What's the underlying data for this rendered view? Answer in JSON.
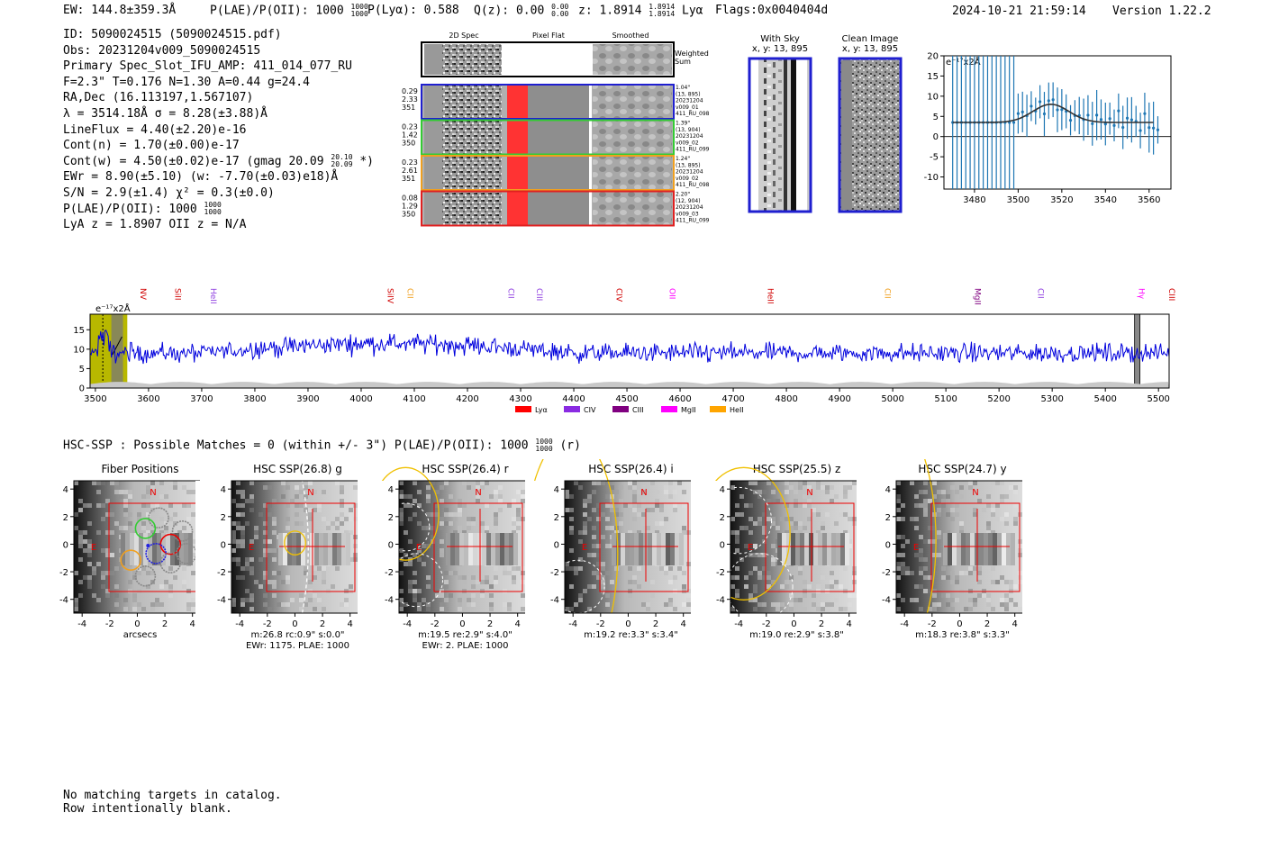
{
  "header": {
    "ew": "EW: 144.8±359.3Å",
    "plae_label": "P(LAE)/P(OII):",
    "plae_value": "1000",
    "plae_hi": "1000",
    "plae_lo": "1000",
    "plya_label": "P(Lyα):",
    "plya_value": "0.588",
    "qz_label": "Q(z):",
    "qz_value": "0.00",
    "qz_hi": "0.00",
    "qz_lo": "0.00",
    "z_label": "z:",
    "z_value": "1.8914",
    "z_hi": "1.8914",
    "z_lo": "1.8914",
    "z_line": "Lyα",
    "flags": "Flags:0x0040404d",
    "timestamp": "2024-10-21 21:59:14",
    "version": "Version 1.22.2"
  },
  "info": {
    "id": "ID: 5090024515 (5090024515.pdf)",
    "obs": "Obs: 20231204v009_5090024515",
    "primary": "Primary Spec_Slot_IFU_AMP: 411_014_077_RU",
    "params": "F=2.3\"  T=0.176  N=1.30  A=0.44  g=24.4",
    "radec": "RA,Dec (16.113197,1.567107)",
    "lambda": "λ = 3514.18Å   σ = 8.28(±3.88)Å",
    "lineflux": "LineFlux = 4.40(±2.20)e-16",
    "contn": "Cont(n) = 1.70(±0.00)e-17",
    "contw": "Cont(w) = 4.50(±0.02)e-17 (gmag 20.09",
    "contw_hi": "20.10",
    "contw_lo": "20.09",
    "contw_end": "*)",
    "ewr": "EWr = 8.90(±5.10) (w: -7.70(±0.03)e18)Å",
    "sn": "S/N = 2.9(±1.4)  χ² = 0.3(±0.0)",
    "plae": "P(LAE)/P(OII): 1000",
    "plae_hi": "1000",
    "plae_lo": "1000",
    "z": "LyA z = 1.8907  OII z = N/A"
  },
  "cutouts": {
    "col_headers": [
      "2D Spec",
      "Pixel Flat",
      "Smoothed"
    ],
    "weighted_label_1": "Weighted",
    "weighted_label_2": "Sum",
    "rows": [
      {
        "left": [
          "0.29",
          "2.33",
          "351"
        ],
        "right": [
          "1.04\"",
          "(13, 895)",
          "20231204",
          "v009_01",
          "411_RU_098"
        ],
        "color": "#1f1fd0"
      },
      {
        "left": [
          "0.23",
          "1.42",
          "350"
        ],
        "right": [
          "1.39\"",
          "(13, 904)",
          "20231204",
          "v009_02",
          "411_RU_099"
        ],
        "color": "#33cc33"
      },
      {
        "left": [
          "0.23",
          "2.61",
          "351"
        ],
        "right": [
          "1.24\"",
          "(13, 895)",
          "20231204",
          "v009_02",
          "411_RU_098"
        ],
        "color": "#f0a020"
      },
      {
        "left": [
          "0.08",
          "1.29",
          "350"
        ],
        "right": [
          "2.20\"",
          "(12, 904)",
          "20231204",
          "v009_03",
          "411_RU_099"
        ],
        "color": "#e02020"
      }
    ]
  },
  "sky": {
    "with_sky_title": "With Sky",
    "with_sky_xy": "x, y: 13, 895",
    "clean_title": "Clean Image",
    "clean_xy": "x, y: 13, 895"
  },
  "fit_plot": {
    "unit_label": "e⁻¹⁷x2Å",
    "x_ticks": [
      "3480",
      "3500",
      "3520",
      "3540",
      "3560"
    ],
    "y_ticks": [
      "20",
      "15",
      "10",
      "5",
      "0",
      "-5",
      "-10"
    ],
    "xlim": [
      3466,
      3570
    ],
    "ylim": [
      -13,
      20
    ],
    "fit_center": 3515,
    "fit_sigma": 8.28,
    "fit_continuum": 3.5,
    "fit_amplitude": 4.5
  },
  "spectrum": {
    "unit_label": "e⁻¹⁷x2Å",
    "x_ticks": [
      "3500",
      "3600",
      "3700",
      "3800",
      "3900",
      "4000",
      "4100",
      "4200",
      "4300",
      "4400",
      "4500",
      "4600",
      "4700",
      "4800",
      "4900",
      "5000",
      "5100",
      "5200",
      "5300",
      "5400",
      "5500"
    ],
    "y_ticks": [
      "15",
      "10",
      "5",
      "0"
    ],
    "xlim": [
      3490,
      5520
    ],
    "ylim": [
      0,
      19
    ],
    "lines": [
      {
        "label": "NV",
        "wave": 3580,
        "color": "#d00000"
      },
      {
        "label": "SiII",
        "wave": 3645,
        "color": "#d00000"
      },
      {
        "label": "HeII",
        "wave": 3712,
        "color": "#9040e0"
      },
      {
        "label": "SiIV",
        "wave": 4045,
        "color": "#d00000"
      },
      {
        "label": "CII",
        "wave": 4082,
        "color": "#f0a020"
      },
      {
        "label": "CII",
        "wave": 4272,
        "color": "#9040e0"
      },
      {
        "label": "CIII",
        "wave": 4325,
        "color": "#9040e0"
      },
      {
        "label": "CIV",
        "wave": 4475,
        "color": "#d00000"
      },
      {
        "label": "OII",
        "wave": 4575,
        "color": "#ff00ff"
      },
      {
        "label": "HeII",
        "wave": 4760,
        "color": "#d00000"
      },
      {
        "label": "CII",
        "wave": 4980,
        "color": "#f0a020"
      },
      {
        "label": "MgII",
        "wave": 5150,
        "color": "#800080"
      },
      {
        "label": "CII",
        "wave": 5268,
        "color": "#9040e0"
      },
      {
        "label": "Hγ",
        "wave": 5458,
        "color": "#ff00ff"
      },
      {
        "label": "CIII",
        "wave": 5515,
        "color": "#d00000"
      }
    ],
    "legend": [
      {
        "label": "Lyα",
        "color": "#ff0000"
      },
      {
        "label": "CIV",
        "color": "#8a2be2"
      },
      {
        "label": "CIII",
        "color": "#800080"
      },
      {
        "label": "MgII",
        "color": "#ff00ff"
      },
      {
        "label": "HeII",
        "color": "#ffa500"
      }
    ]
  },
  "hsc": {
    "summary": "HSC-SSP : Possible Matches = 0 (within +/- 3\")  P(LAE)/P(OII): 1000",
    "summary_hi": "1000",
    "summary_lo": "1000",
    "summary_end": "(r)",
    "panels": [
      {
        "title": "Fiber Positions",
        "line1": "arcsecs",
        "line2": ""
      },
      {
        "title": "HSC SSP(26.8) g",
        "line1": "m:26.8 rc:0.9\"  s:0.0\"",
        "line2": "EWr: 1175, PLAE: 1000"
      },
      {
        "title": "HSC SSP(26.4) r",
        "line1": "m:19.5  re:2.9\"  s:4.0\"",
        "line2": "EWr: 2, PLAE: 1000"
      },
      {
        "title": "HSC SSP(26.4) i",
        "line1": "m:19.2  re:3.3\"  s:3.4\"",
        "line2": ""
      },
      {
        "title": "HSC SSP(25.5) z",
        "line1": "m:19.0  re:2.9\"  s:3.8\"",
        "line2": ""
      },
      {
        "title": "HSC SSP(24.7) y",
        "line1": "m:18.3  re:3.8\"  s:3.3\"",
        "line2": ""
      }
    ],
    "ticks": [
      "4",
      "2",
      "0",
      "-2",
      "-4"
    ],
    "north": "N",
    "east": "E"
  },
  "footer": {
    "line1": "No matching targets in catalog.",
    "line2": "Row intentionally blank."
  }
}
